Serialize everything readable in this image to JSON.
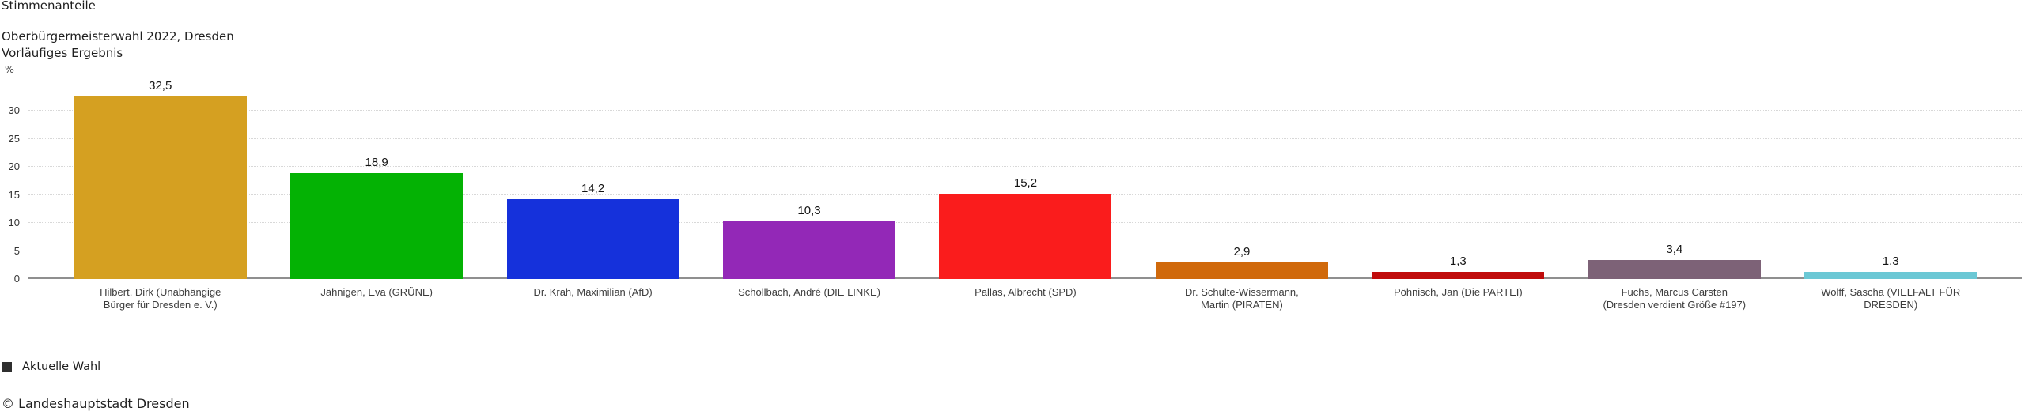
{
  "header": {
    "title": "Stimmenanteile",
    "subtitle_line1": "Oberbürgermeisterwahl 2022, Dresden",
    "subtitle_line2": "Vorläufiges Ergebnis"
  },
  "chart_data": {
    "type": "bar",
    "title": "Stimmenanteile",
    "subtitle": "Oberbürgermeisterwahl 2022, Dresden — Vorläufiges Ergebnis",
    "xlabel": "",
    "ylabel": "%",
    "ylim": [
      0,
      34
    ],
    "yticks": [
      0,
      5,
      10,
      15,
      20,
      25,
      30
    ],
    "grid": "horizontal-dotted",
    "legend_position": "bottom-left",
    "categories": [
      "Hilbert, Dirk (Unabhängige Bürger für Dresden e. V.)",
      "Jähnigen, Eva (GRÜNE)",
      "Dr. Krah, Maximilian (AfD)",
      "Schollbach, André (DIE LINKE)",
      "Pallas, Albrecht (SPD)",
      "Dr. Schulte-Wissermann, Martin (PIRATEN)",
      "Pöhnisch, Jan (Die PARTEI)",
      "Fuchs, Marcus Carsten (Dresden verdient Größe #197)",
      "Wolff, Sascha (VIELFALT FÜR DRESDEN)"
    ],
    "series": [
      {
        "name": "Aktuelle Wahl",
        "values": [
          32.5,
          18.9,
          14.2,
          10.3,
          15.2,
          2.9,
          1.3,
          3.4,
          1.3
        ]
      }
    ],
    "value_labels": [
      "32,5",
      "18,9",
      "14,2",
      "10,3",
      "15,2",
      "2,9",
      "1,3",
      "3,4",
      "1,3"
    ],
    "bar_colors": [
      "#D5A021",
      "#04B204",
      "#1531DB",
      "#9328B7",
      "#FA1C1C",
      "#D0690B",
      "#C00C0C",
      "#7D6277",
      "#6BC8D5"
    ]
  },
  "legend": {
    "label": "Aktuelle Wahl",
    "swatch_color": "#2F2F2F"
  },
  "footer": {
    "copyright": "© Landeshauptstadt Dresden"
  },
  "style": {
    "gridline_color": "#d8d8d8",
    "axis_line_color": "#8f8f8f",
    "tick_label_color": "#333333",
    "category_label_color": "#3d3d3d"
  }
}
